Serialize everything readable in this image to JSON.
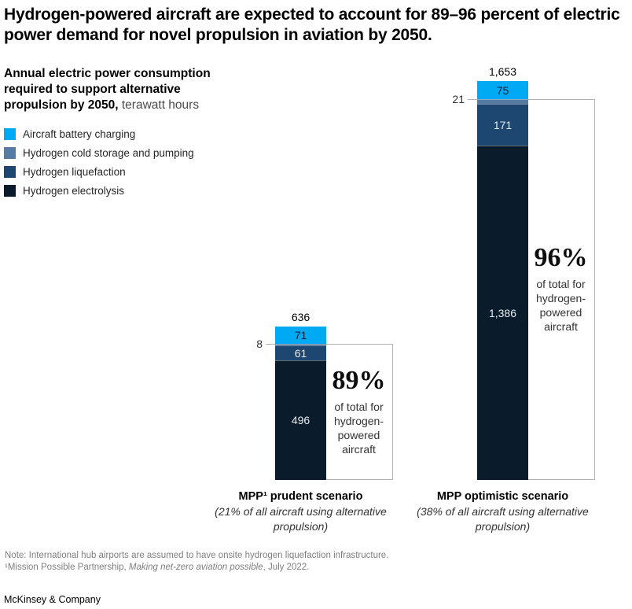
{
  "title": "Hydrogen-powered aircraft are expected to account for 89–96 percent of electric power demand for novel propulsion in aviation by 2050.",
  "subtitle": {
    "bold": "Annual electric power consumption required to support alternative propulsion by 2050,",
    "unit": " terawatt hours"
  },
  "legend": [
    {
      "label": "Aircraft battery charging",
      "color": "#00A9F4"
    },
    {
      "label": "Hydrogen cold storage and pumping",
      "color": "#567CA4"
    },
    {
      "label": "Hydrogen liquefaction",
      "color": "#1D4670"
    },
    {
      "label": "Hydrogen electrolysis",
      "color": "#0A1C2C"
    }
  ],
  "chart_data": {
    "type": "bar",
    "stacked": true,
    "unit": "terawatt hours",
    "categories": [
      "MPP¹ prudent scenario",
      "MPP optimistic scenario"
    ],
    "category_notes": [
      "(21% of all aircraft using alternative propulsion)",
      "(38% of all aircraft using alternative propulsion)"
    ],
    "series": [
      {
        "name": "Aircraft battery charging",
        "color": "#00A9F4",
        "values": [
          71,
          75
        ]
      },
      {
        "name": "Hydrogen cold storage and pumping",
        "color": "#567CA4",
        "values": [
          8,
          21
        ]
      },
      {
        "name": "Hydrogen liquefaction",
        "color": "#1D4670",
        "values": [
          61,
          171
        ]
      },
      {
        "name": "Hydrogen electrolysis",
        "color": "#0A1C2C",
        "values": [
          496,
          1386
        ]
      }
    ],
    "totals": [
      636,
      1653
    ],
    "total_labels": [
      "636",
      "1,653"
    ],
    "value_labels": [
      [
        "71",
        "8",
        "61",
        "496"
      ],
      [
        "75",
        "21",
        "171",
        "1,386"
      ]
    ],
    "annotations": [
      {
        "pct": "89%",
        "desc": "of total for hydrogen-powered aircraft"
      },
      {
        "pct": "96%",
        "desc": "of total for hydrogen-powered aircraft"
      }
    ],
    "grid": false,
    "legend_position": "top-left"
  },
  "footnotes": {
    "note": "Note: International hub airports are assumed to have onsite hydrogen liquefaction infrastructure.",
    "ref_prefix": "¹Mission Possible Partnership, ",
    "ref_italic": "Making net-zero aviation possible",
    "ref_suffix": ", July 2022."
  },
  "brand": "McKinsey & Company"
}
